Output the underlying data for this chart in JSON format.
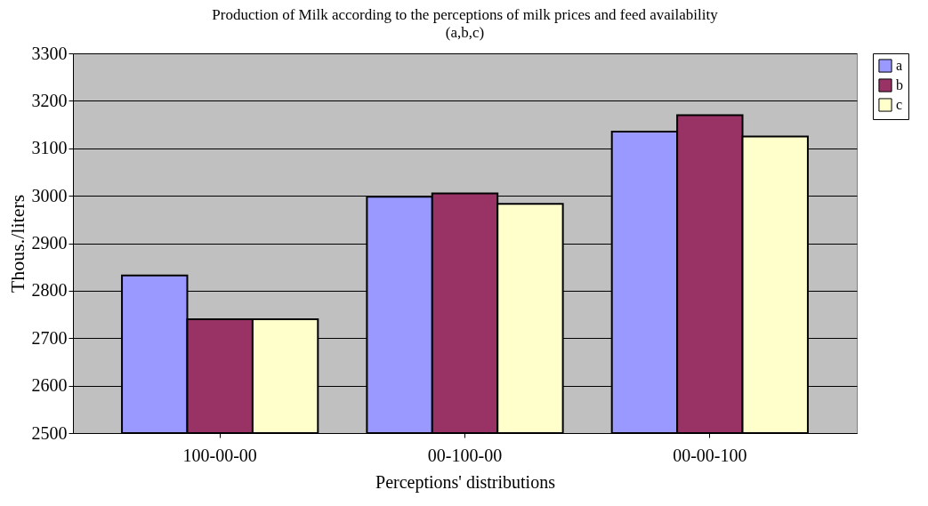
{
  "chart_data": {
    "type": "bar",
    "title": "Production of Milk according to the perceptions of milk prices and feed availability",
    "subtitle": "(a,b,c)",
    "xlabel": "Perceptions' distributions",
    "ylabel": "Thous./liters",
    "categories": [
      "100-00-00",
      "00-100-00",
      "00-00-100"
    ],
    "series": [
      {
        "name": "a",
        "color": "#9999ff",
        "values": [
          2832,
          2998,
          3135
        ]
      },
      {
        "name": "b",
        "color": "#993366",
        "values": [
          2740,
          3005,
          3170
        ]
      },
      {
        "name": "c",
        "color": "#ffffcc",
        "values": [
          2740,
          2983,
          3125
        ]
      }
    ],
    "ylim": [
      2500,
      3300
    ],
    "yticks": [
      2500,
      2600,
      2700,
      2800,
      2900,
      3000,
      3100,
      3200,
      3300
    ],
    "grid": "y",
    "legend": "right"
  }
}
